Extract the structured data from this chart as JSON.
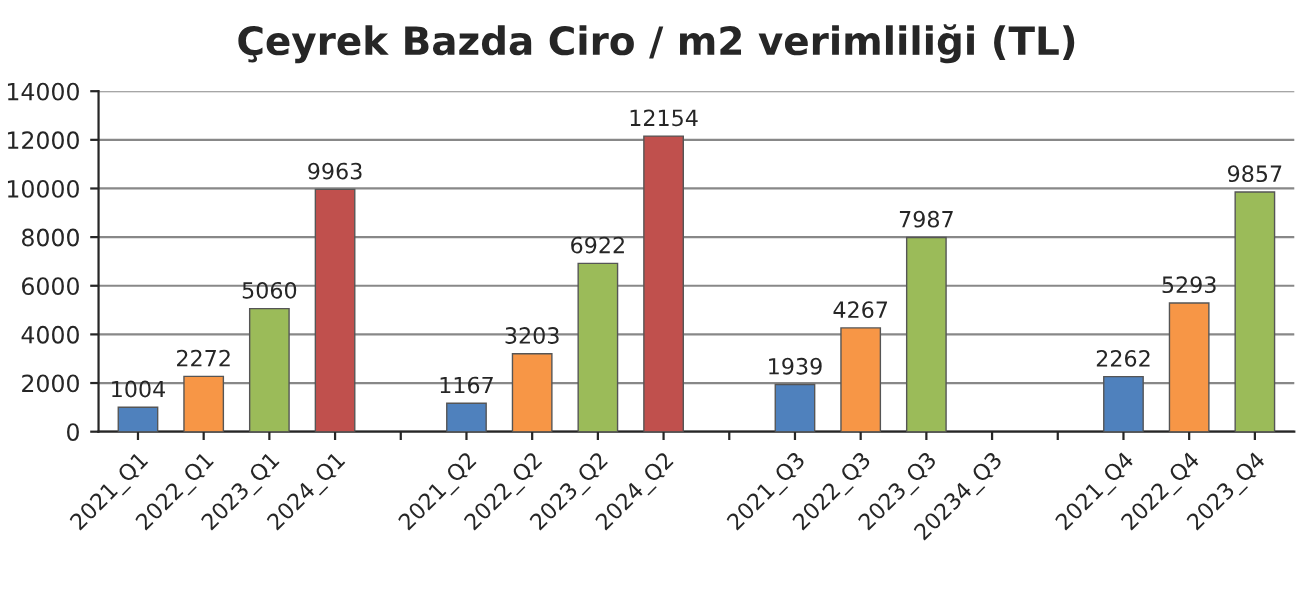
{
  "chart_data": {
    "type": "bar",
    "title": "Çeyrek Bazda Ciro / m2 verimliliği (TL)",
    "categories": [
      "2021_Q1",
      "2022_Q1",
      "2023_Q1",
      "2024_Q1",
      null,
      "2021_Q2",
      "2022_Q2",
      "2023_Q2",
      "2024_Q2",
      null,
      "2021_Q3",
      "2022_Q3",
      "2023_Q3",
      "20234_Q3",
      null,
      "2021_Q4",
      "2022_Q4",
      "2023_Q4"
    ],
    "values": [
      1004,
      2272,
      5060,
      9963,
      null,
      1167,
      3203,
      6922,
      12154,
      null,
      1939,
      4267,
      7987,
      null,
      null,
      2262,
      5293,
      9857
    ],
    "colors": [
      "#4f81bd",
      "#f79646",
      "#9bbb59",
      "#c0504d",
      null,
      "#4f81bd",
      "#f79646",
      "#9bbb59",
      "#c0504d",
      null,
      "#4f81bd",
      "#f79646",
      "#9bbb59",
      null,
      null,
      "#4f81bd",
      "#f79646",
      "#9bbb59"
    ],
    "ylim": [
      0,
      14000
    ],
    "yticks": [
      0,
      2000,
      4000,
      6000,
      8000,
      10000,
      12000,
      14000
    ],
    "grid": "y",
    "data_labels": true
  }
}
